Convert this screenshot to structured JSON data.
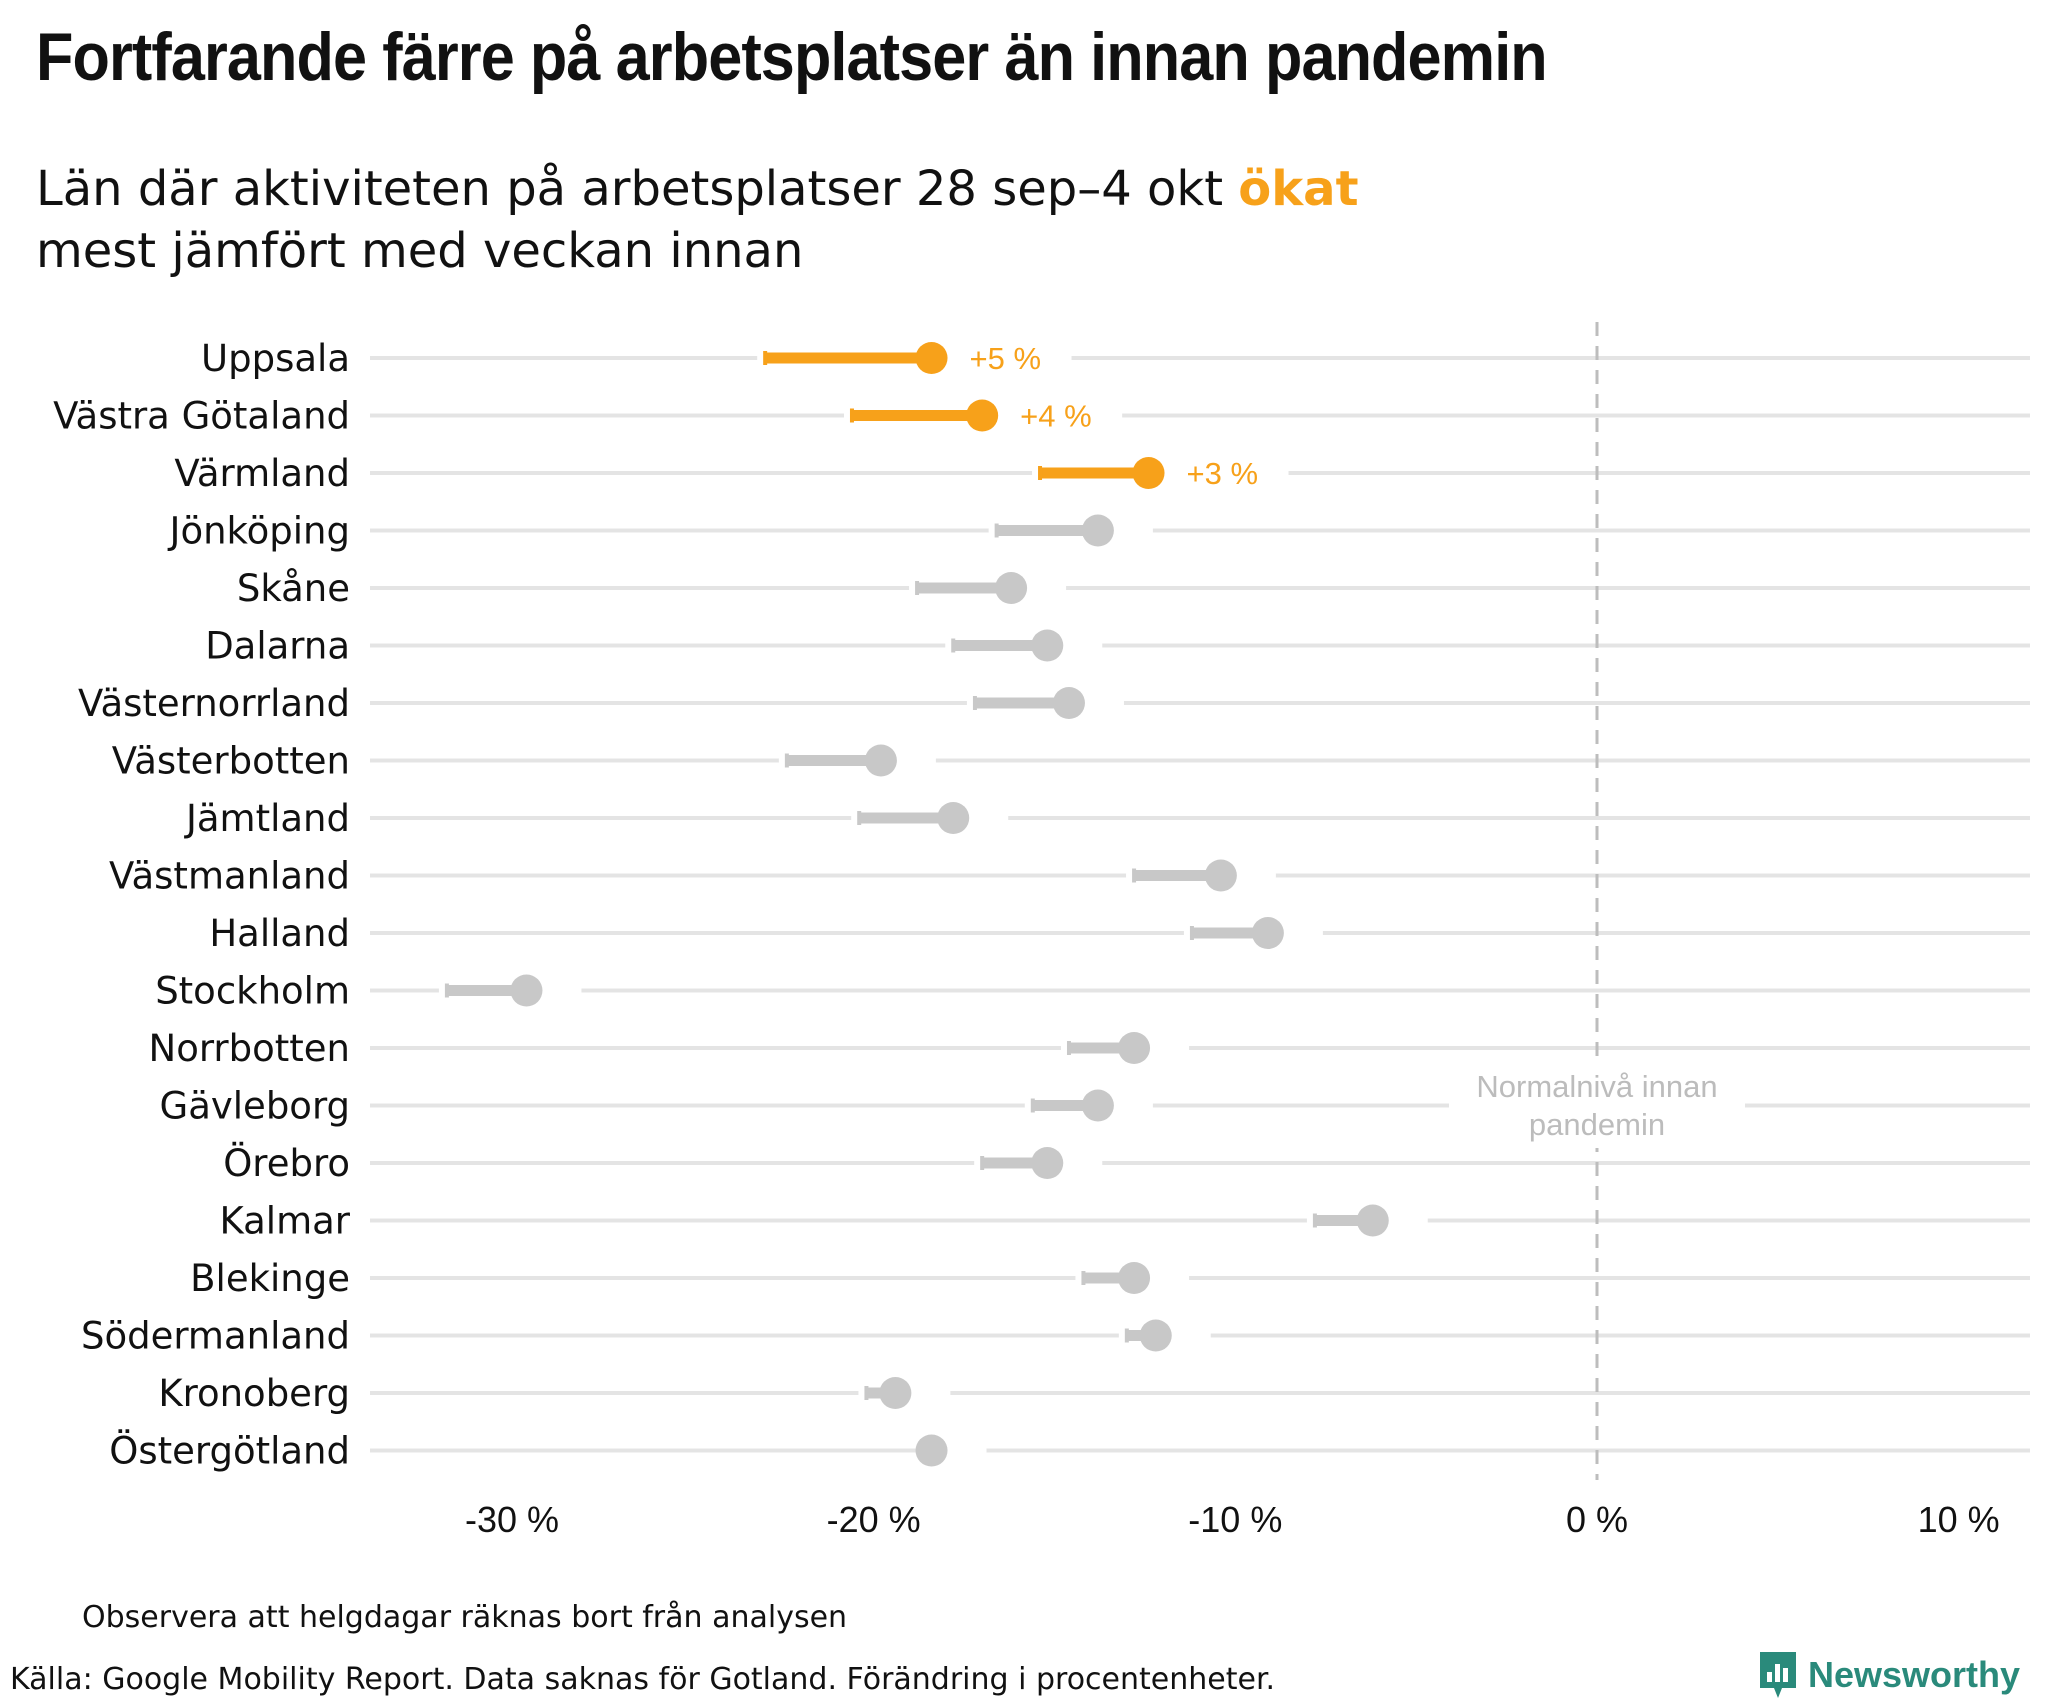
{
  "title": "Fortfarande färre på arbetsplatser än innan pandemin",
  "subtitle": {
    "line1_prefix": "Län där aktiviteten på arbetsplatser 28 sep–4 okt ",
    "line1_highlight": "ökat",
    "line2": "mest jämfört med veckan innan"
  },
  "colors": {
    "highlight": "#f7a11a",
    "muted": "#c8c8c8",
    "gridline": "#e4e4e4",
    "brand": "#2a8a7b"
  },
  "chart_data": {
    "type": "dumbbell",
    "x_axis": {
      "range": [
        -34,
        12
      ],
      "ticks": [
        -30,
        -20,
        -10,
        0,
        10
      ],
      "tick_labels": [
        "-30 %",
        "-20 %",
        "-10 %",
        "0 %",
        "10 %"
      ]
    },
    "reference_line": {
      "x": 0,
      "label_line1": "Normalnivå innan",
      "label_line2": "pandemin"
    },
    "rows": [
      {
        "region": "Uppsala",
        "previous": -23.0,
        "current": -18.4,
        "highlight": true,
        "label": "+5 %"
      },
      {
        "region": "Västra Götaland",
        "previous": -20.6,
        "current": -17.0,
        "highlight": true,
        "label": "+4 %"
      },
      {
        "region": "Värmland",
        "previous": -15.4,
        "current": -12.4,
        "highlight": true,
        "label": "+3 %"
      },
      {
        "region": "Jönköping",
        "previous": -16.6,
        "current": -13.8,
        "highlight": false
      },
      {
        "region": "Skåne",
        "previous": -18.8,
        "current": -16.2,
        "highlight": false
      },
      {
        "region": "Dalarna",
        "previous": -17.8,
        "current": -15.2,
        "highlight": false
      },
      {
        "region": "Västernorrland",
        "previous": -17.2,
        "current": -14.6,
        "highlight": false
      },
      {
        "region": "Västerbotten",
        "previous": -22.4,
        "current": -19.8,
        "highlight": false
      },
      {
        "region": "Jämtland",
        "previous": -20.4,
        "current": -17.8,
        "highlight": false
      },
      {
        "region": "Västmanland",
        "previous": -12.8,
        "current": -10.4,
        "highlight": false
      },
      {
        "region": "Halland",
        "previous": -11.2,
        "current": -9.1,
        "highlight": false
      },
      {
        "region": "Stockholm",
        "previous": -31.8,
        "current": -29.6,
        "highlight": false
      },
      {
        "region": "Norrbotten",
        "previous": -14.6,
        "current": -12.8,
        "highlight": false
      },
      {
        "region": "Gävleborg",
        "previous": -15.6,
        "current": -13.8,
        "highlight": false
      },
      {
        "region": "Örebro",
        "previous": -17.0,
        "current": -15.2,
        "highlight": false
      },
      {
        "region": "Kalmar",
        "previous": -7.8,
        "current": -6.2,
        "highlight": false
      },
      {
        "region": "Blekinge",
        "previous": -14.2,
        "current": -12.8,
        "highlight": false
      },
      {
        "region": "Södermanland",
        "previous": -13.0,
        "current": -12.2,
        "highlight": false
      },
      {
        "region": "Kronoberg",
        "previous": -20.2,
        "current": -19.4,
        "highlight": false
      },
      {
        "region": "Östergötland",
        "previous": -18.4,
        "current": -18.4,
        "highlight": false
      }
    ]
  },
  "footer": {
    "note": "Observera att helgdagar räknas bort från analysen",
    "source": "Källa: Google Mobility Report. Data saknas för Gotland. Förändring i procentenheter.",
    "brand_name": "Newsworthy",
    "brand_icon": "newsworthy-logo-icon"
  }
}
